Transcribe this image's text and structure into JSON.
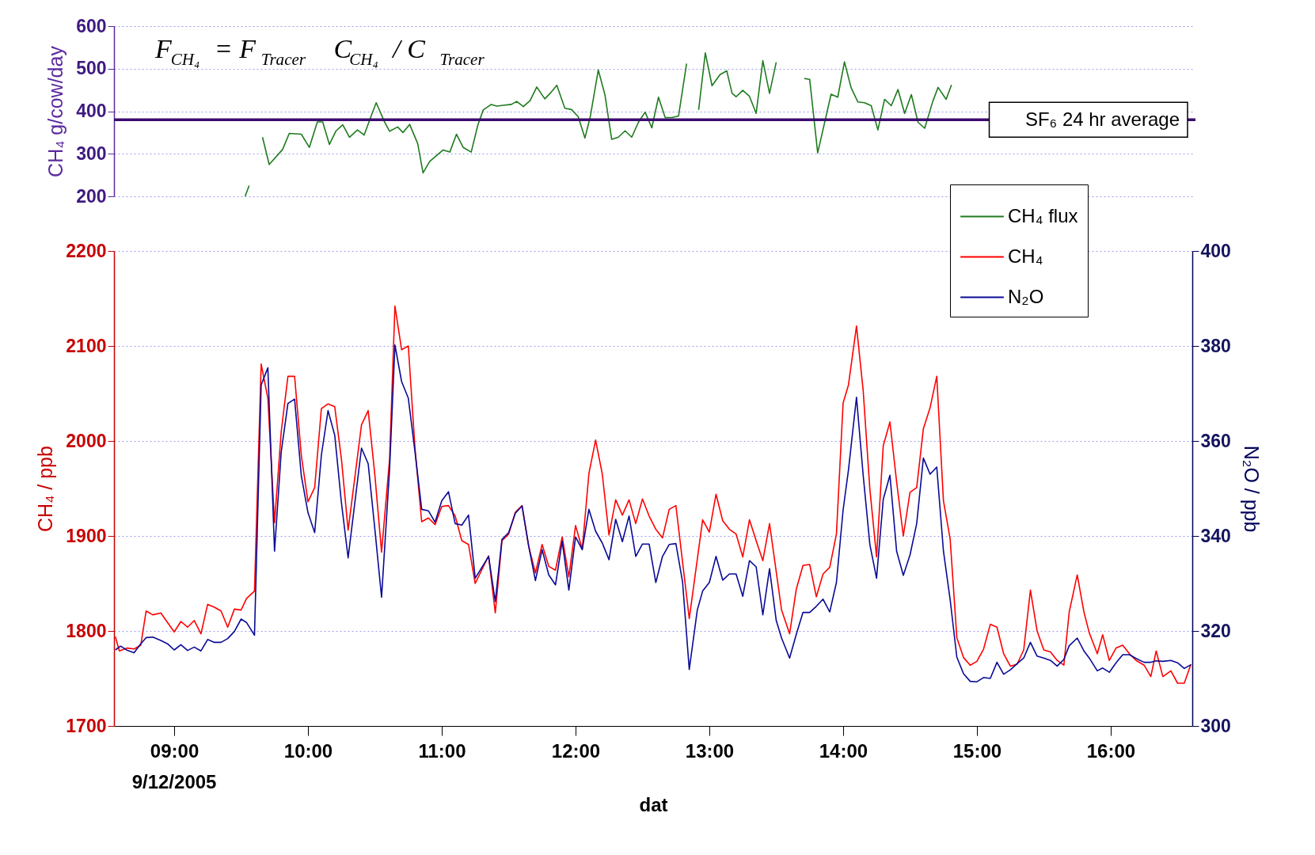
{
  "chart_data": [
    {
      "type": "line",
      "ylabel": "CH₄ g/cow/day",
      "annotations": [
        "F$_{CH₄}$ = F$_{Tracer}$ C$_{CH₄}$ / C$_{Tracer}$"
      ],
      "xlim": [
        8.55,
        16.61
      ],
      "ylim": [
        200,
        600
      ],
      "yticks": [
        200,
        300,
        400,
        500,
        600
      ],
      "grid": "y",
      "tick_labels": "y",
      "legend": "bottom right",
      "ref_lines": [
        {
          "axis": "y",
          "value": 380,
          "label": "SF₆ 24 hr average",
          "color": "#3b0a6e"
        }
      ],
      "series": [
        {
          "name": "CH₄ flux",
          "color": "#1e7b1e",
          "x": [
            9.53,
            9.56,
            9.6,
            9.66,
            9.71,
            9.81,
            9.86,
            9.95,
            10.01,
            10.07,
            10.11,
            10.16,
            10.21,
            10.26,
            10.31,
            10.37,
            10.42,
            10.47,
            10.51,
            10.57,
            10.61,
            10.67,
            10.71,
            10.76,
            10.82,
            10.86,
            10.91,
            11.01,
            11.06,
            11.11,
            11.16,
            11.22,
            11.27,
            11.31,
            11.37,
            11.41,
            11.46,
            11.52,
            11.56,
            11.61,
            11.66,
            11.71,
            11.77,
            11.81,
            11.86,
            11.92,
            11.97,
            12.02,
            12.07,
            12.11,
            12.17,
            12.22,
            12.27,
            12.32,
            12.37,
            12.42,
            12.47,
            12.52,
            12.57,
            12.62,
            12.67,
            12.72,
            12.77,
            12.83,
            12.87,
            12.92,
            12.97,
            13.02,
            13.08,
            13.13,
            13.17,
            13.2,
            13.25,
            13.3,
            13.35,
            13.4,
            13.45,
            13.5,
            13.6,
            13.71,
            13.75,
            13.81,
            13.91,
            13.96,
            14.01,
            14.06,
            14.11,
            14.16,
            14.21,
            14.26,
            14.31,
            14.36,
            14.41,
            14.46,
            14.51,
            14.56,
            14.61,
            14.67,
            14.71,
            14.77,
            14.81
          ],
          "values": [
            200,
            225,
            null,
            339,
            275,
            310,
            348,
            346,
            315,
            375,
            375,
            322,
            354,
            368,
            339,
            356,
            344,
            387,
            420,
            376,
            353,
            363,
            350,
            369,
            324,
            255,
            282,
            309,
            304,
            346,
            315,
            304,
            368,
            403,
            416,
            412,
            414,
            416,
            423,
            411,
            425,
            457,
            429,
            442,
            461,
            407,
            404,
            387,
            337,
            387,
            497,
            438,
            334,
            339,
            354,
            339,
            374,
            398,
            361,
            433,
            385,
            385,
            389,
            512,
            null,
            403,
            537,
            460,
            486,
            495,
            442,
            434,
            449,
            435,
            395,
            519,
            442,
            515,
            null,
            477,
            475,
            302,
            440,
            433,
            516,
            455,
            422,
            420,
            413,
            356,
            428,
            413,
            451,
            395,
            439,
            374,
            360,
            423,
            456,
            428,
            462
          ]
        }
      ]
    },
    {
      "type": "line",
      "xlabel": "dat",
      "ylabel": "CH₄ / ppb",
      "y2label": "N₂O / ppb",
      "annotations": [
        "9/12/2005"
      ],
      "xlim": [
        8.55,
        16.61
      ],
      "xticks": [
        {
          "value": 9,
          "label": "09:00"
        },
        {
          "value": 10,
          "label": "10:00"
        },
        {
          "value": 11,
          "label": "11:00"
        },
        {
          "value": 12,
          "label": "12:00"
        },
        {
          "value": 13,
          "label": "13:00"
        },
        {
          "value": 14,
          "label": "14:00"
        },
        {
          "value": 15,
          "label": "15:00"
        },
        {
          "value": 16,
          "label": "16:00"
        }
      ],
      "ylim": [
        1700,
        2200
      ],
      "yticks": [
        1700,
        1800,
        1900,
        2000,
        2100,
        2200
      ],
      "y2lim": [
        300,
        400
      ],
      "y2ticks": [
        300,
        320,
        340,
        360,
        380,
        400
      ],
      "grid": "y",
      "legend": "top right",
      "series": [
        {
          "name": "CH₄",
          "color": "#ff0000",
          "x": [
            8.56,
            8.59,
            8.65,
            8.7,
            8.75,
            8.79,
            8.84,
            8.9,
            9.0,
            9.05,
            9.1,
            9.15,
            9.2,
            9.25,
            9.3,
            9.35,
            9.4,
            9.45,
            9.5,
            9.54,
            9.6,
            9.65,
            9.7,
            9.75,
            9.8,
            9.85,
            9.9,
            9.95,
            10.0,
            10.05,
            10.1,
            10.15,
            10.2,
            10.25,
            10.3,
            10.4,
            10.45,
            10.5,
            10.55,
            10.61,
            10.65,
            10.7,
            10.75,
            10.8,
            10.85,
            10.9,
            10.95,
            11.0,
            11.05,
            11.1,
            11.15,
            11.2,
            11.25,
            11.35,
            11.4,
            11.45,
            11.5,
            11.55,
            11.6,
            11.65,
            11.7,
            11.75,
            11.8,
            11.85,
            11.9,
            11.95,
            12.0,
            12.05,
            12.1,
            12.15,
            12.2,
            12.25,
            12.3,
            12.35,
            12.4,
            12.45,
            12.5,
            12.55,
            12.6,
            12.65,
            12.7,
            12.75,
            12.85,
            12.95,
            13.0,
            13.05,
            13.1,
            13.15,
            13.2,
            13.25,
            13.3,
            13.35,
            13.4,
            13.45,
            13.54,
            13.6,
            13.65,
            13.7,
            13.75,
            13.8,
            13.85,
            13.9,
            13.95,
            14.0,
            14.04,
            14.1,
            14.15,
            14.2,
            14.25,
            14.3,
            14.35,
            14.4,
            14.45,
            14.5,
            14.55,
            14.6,
            14.65,
            14.7,
            14.75,
            14.8,
            14.85,
            14.9,
            14.95,
            15.0,
            15.05,
            15.1,
            15.15,
            15.2,
            15.25,
            15.3,
            15.35,
            15.4,
            15.45,
            15.5,
            15.55,
            15.6,
            15.65,
            15.69,
            15.75,
            15.8,
            15.84,
            15.9,
            15.94,
            15.99,
            16.04,
            16.09,
            16.14,
            16.19,
            16.25,
            16.3,
            16.34,
            16.39,
            16.45,
            16.5,
            16.55,
            16.6
          ],
          "values": [
            1794,
            1779,
            1782,
            1781,
            1785,
            1821,
            1817,
            1819,
            1799,
            1810,
            1804,
            1811,
            1797,
            1828,
            1825,
            1821,
            1804,
            1823,
            1822,
            1834,
            1842,
            2081,
            2045,
            1914,
            2010,
            2068,
            2068,
            1985,
            1936,
            1951,
            2034,
            2039,
            2036,
            1981,
            1906,
            2017,
            2032,
            1964,
            1883,
            1981,
            2142,
            2096,
            2100,
            1992,
            1915,
            1919,
            1912,
            1931,
            1932,
            1921,
            1895,
            1891,
            1850,
            1879,
            1819,
            1895,
            1902,
            1925,
            1932,
            1889,
            1861,
            1891,
            1868,
            1864,
            1899,
            1857,
            1911,
            1886,
            1966,
            2001,
            1965,
            1901,
            1938,
            1922,
            1938,
            1913,
            1939,
            1921,
            1907,
            1898,
            1928,
            1932,
            1813,
            1917,
            1904,
            1944,
            1916,
            1907,
            1902,
            1878,
            1917,
            1895,
            1874,
            1913,
            1822,
            1797,
            1844,
            1869,
            1870,
            1836,
            1860,
            1867,
            1902,
            2040,
            2059,
            2121,
            2053,
            1949,
            1878,
            1995,
            2020,
            1957,
            1900,
            1946,
            1951,
            2013,
            2035,
            2068,
            1937,
            1897,
            1793,
            1772,
            1764,
            1768,
            1781,
            1807,
            1804,
            1776,
            1763,
            1765,
            1780,
            1843,
            1800,
            1780,
            1778,
            1769,
            1764,
            1820,
            1859,
            1820,
            1798,
            1776,
            1796,
            1769,
            1782,
            1785,
            1776,
            1769,
            1764,
            1752,
            1779,
            1752,
            1758,
            1745,
            1745,
            1765
          ]
        },
        {
          "name": "N₂O",
          "color": "#0a0a96",
          "axis": "y2",
          "x": [
            8.56,
            8.6,
            8.65,
            8.7,
            8.75,
            8.79,
            8.84,
            8.9,
            8.95,
            9.0,
            9.05,
            9.1,
            9.15,
            9.2,
            9.25,
            9.3,
            9.35,
            9.4,
            9.45,
            9.5,
            9.54,
            9.6,
            9.65,
            9.7,
            9.75,
            9.8,
            9.85,
            9.9,
            9.95,
            10.0,
            10.05,
            10.1,
            10.15,
            10.2,
            10.25,
            10.3,
            10.4,
            10.45,
            10.5,
            10.55,
            10.61,
            10.65,
            10.7,
            10.75,
            10.8,
            10.85,
            10.9,
            10.95,
            11.0,
            11.05,
            11.1,
            11.15,
            11.2,
            11.25,
            11.35,
            11.4,
            11.45,
            11.5,
            11.55,
            11.6,
            11.65,
            11.7,
            11.75,
            11.8,
            11.85,
            11.9,
            11.95,
            12.0,
            12.05,
            12.1,
            12.15,
            12.2,
            12.25,
            12.3,
            12.35,
            12.4,
            12.45,
            12.5,
            12.55,
            12.6,
            12.65,
            12.7,
            12.75,
            12.8,
            12.85,
            12.91,
            12.95,
            13.0,
            13.05,
            13.1,
            13.15,
            13.2,
            13.25,
            13.3,
            13.35,
            13.4,
            13.45,
            13.5,
            13.54,
            13.6,
            13.65,
            13.7,
            13.75,
            13.8,
            13.85,
            13.9,
            13.95,
            14.0,
            14.04,
            14.1,
            14.15,
            14.2,
            14.25,
            14.3,
            14.35,
            14.4,
            14.45,
            14.5,
            14.55,
            14.6,
            14.65,
            14.7,
            14.75,
            14.8,
            14.85,
            14.9,
            14.95,
            15.0,
            15.05,
            15.1,
            15.15,
            15.2,
            15.25,
            15.3,
            15.35,
            15.4,
            15.45,
            15.5,
            15.55,
            15.6,
            15.65,
            15.69,
            15.75,
            15.8,
            15.84,
            15.9,
            15.94,
            15.99,
            16.04,
            16.09,
            16.14,
            16.19,
            16.25,
            16.3,
            16.34,
            16.39,
            16.45,
            16.5,
            16.55,
            16.6
          ],
          "values": [
            316.0,
            316.8,
            315.9,
            315.4,
            317.3,
            318.6,
            318.7,
            318.0,
            317.3,
            316.0,
            317.1,
            315.9,
            316.6,
            315.8,
            318.2,
            317.6,
            317.6,
            318.4,
            319.9,
            322.5,
            321.8,
            319.1,
            371.8,
            375.4,
            336.8,
            357.7,
            367.9,
            368.8,
            352.7,
            344.9,
            340.7,
            357.0,
            366.4,
            361.2,
            347.0,
            335.4,
            358.5,
            355.2,
            341.4,
            327.1,
            354.1,
            380.2,
            372.5,
            369.0,
            357.7,
            345.6,
            345.3,
            342.9,
            347.4,
            349.3,
            342.6,
            342.3,
            344.4,
            331.1,
            335.7,
            326.2,
            339.3,
            340.7,
            344.8,
            346.3,
            337.8,
            330.6,
            337.1,
            331.8,
            329.7,
            338.9,
            328.6,
            339.8,
            337.1,
            345.6,
            341.0,
            338.5,
            335.0,
            343.5,
            338.8,
            344.2,
            335.7,
            338.3,
            338.3,
            330.2,
            335.7,
            338.2,
            338.4,
            330.3,
            311.9,
            324.4,
            328.4,
            330.2,
            335.7,
            330.7,
            332.0,
            332.0,
            327.3,
            334.8,
            333.5,
            323.4,
            333.1,
            322.2,
            318.5,
            314.3,
            319.3,
            323.9,
            323.9,
            325.2,
            326.7,
            324.0,
            330.2,
            345.5,
            353.9,
            369.2,
            352.8,
            338.2,
            331.1,
            347.7,
            352.8,
            336.8,
            331.7,
            336.0,
            342.6,
            356.4,
            353.0,
            354.5,
            336.8,
            326.6,
            314.5,
            311.0,
            309.4,
            309.3,
            310.2,
            310.0,
            313.4,
            310.9,
            311.8,
            313.1,
            314.3,
            317.6,
            314.7,
            314.3,
            313.8,
            312.6,
            314.0,
            316.9,
            318.5,
            315.8,
            314.3,
            311.6,
            312.2,
            311.3,
            313.3,
            315.0,
            315.0,
            314.2,
            313.4,
            313.4,
            313.7,
            313.6,
            313.8,
            313.3,
            312.1,
            312.9
          ]
        }
      ]
    }
  ]
}
